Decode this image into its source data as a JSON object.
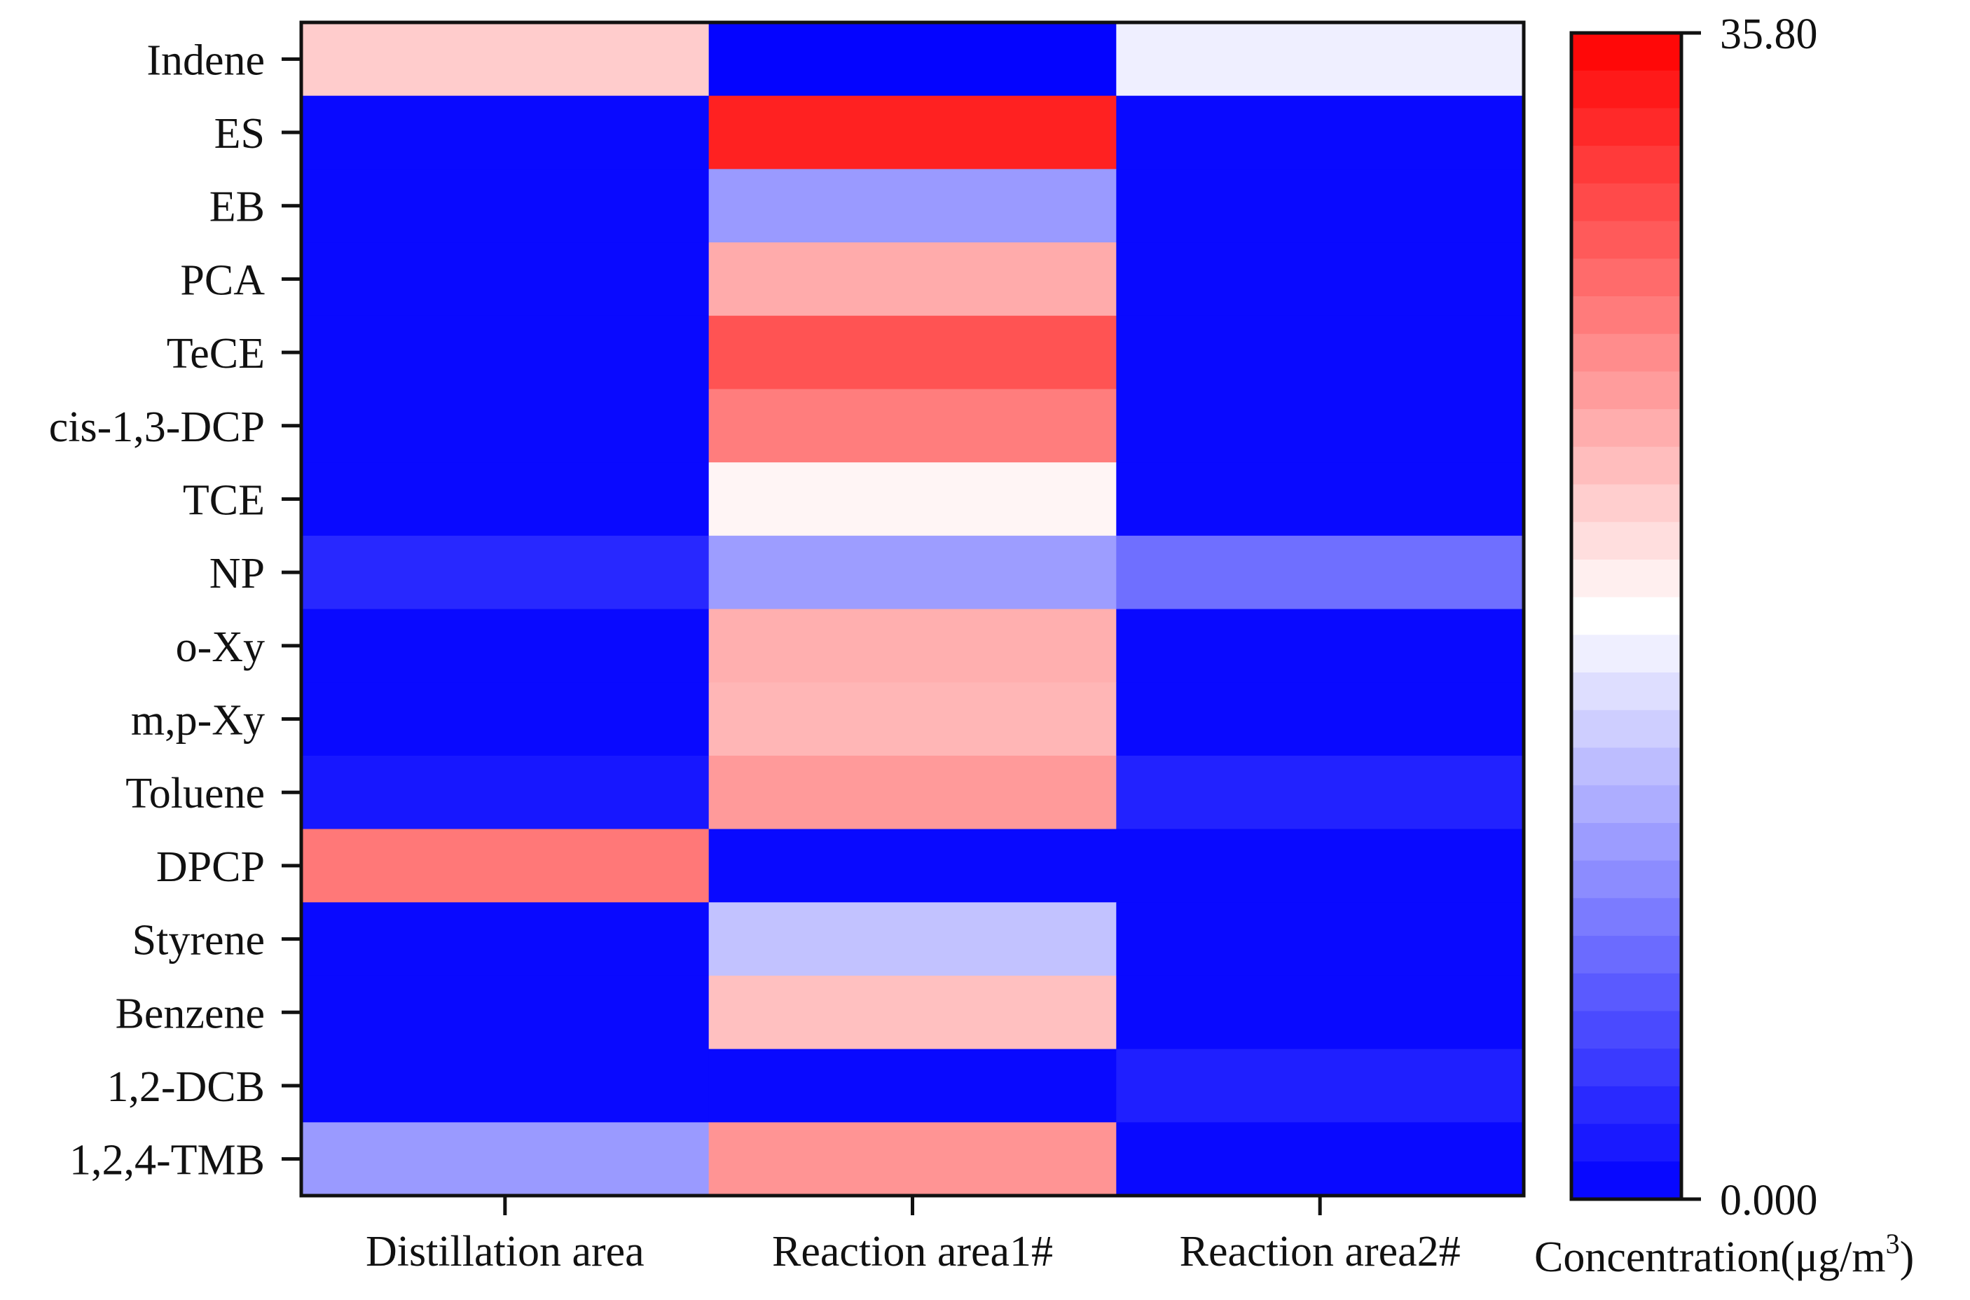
{
  "chart_data": {
    "type": "heatmap",
    "title": "",
    "xlabel": "",
    "ylabel": "",
    "categories_x": [
      "Distillation area",
      "Reaction area1#",
      "Reaction area2#"
    ],
    "categories_y": [
      "Indene",
      "ES",
      "EB",
      "PCA",
      "TeCE",
      "cis-1,3-DCP",
      "TCE",
      "NP",
      "o-Xy",
      "m,p-Xy",
      "Toluene",
      "DPCP",
      "Styrene",
      "Benzene",
      "1,2-DCB",
      "1,2,4-TMB"
    ],
    "values": [
      [
        21.5,
        0.3,
        16.8
      ],
      [
        0.6,
        33.5,
        0.6
      ],
      [
        0.6,
        10.8,
        0.6
      ],
      [
        0.6,
        23.8,
        0.6
      ],
      [
        0.6,
        30.0,
        0.6
      ],
      [
        0.6,
        27.0,
        0.6
      ],
      [
        0.6,
        18.6,
        0.6
      ],
      [
        2.8,
        11.0,
        7.8
      ],
      [
        0.6,
        23.5,
        0.6
      ],
      [
        0.6,
        23.0,
        0.6
      ],
      [
        1.6,
        25.0,
        2.4
      ],
      [
        27.4,
        0.6,
        0.6
      ],
      [
        0.6,
        13.6,
        0.6
      ],
      [
        0.6,
        22.3,
        0.6
      ],
      [
        0.6,
        0.6,
        2.2
      ],
      [
        10.8,
        25.4,
        0.6
      ]
    ],
    "colorbar": {
      "label_text": "Concentration(μg/m",
      "label_sup": "3",
      "label_end": ")",
      "min": 0.0,
      "max": 35.8,
      "min_label": "0.000",
      "max_label": "35.80",
      "colors": [
        "#0000ff",
        "#ffffff",
        "#ff0000"
      ],
      "steps": 31
    }
  }
}
